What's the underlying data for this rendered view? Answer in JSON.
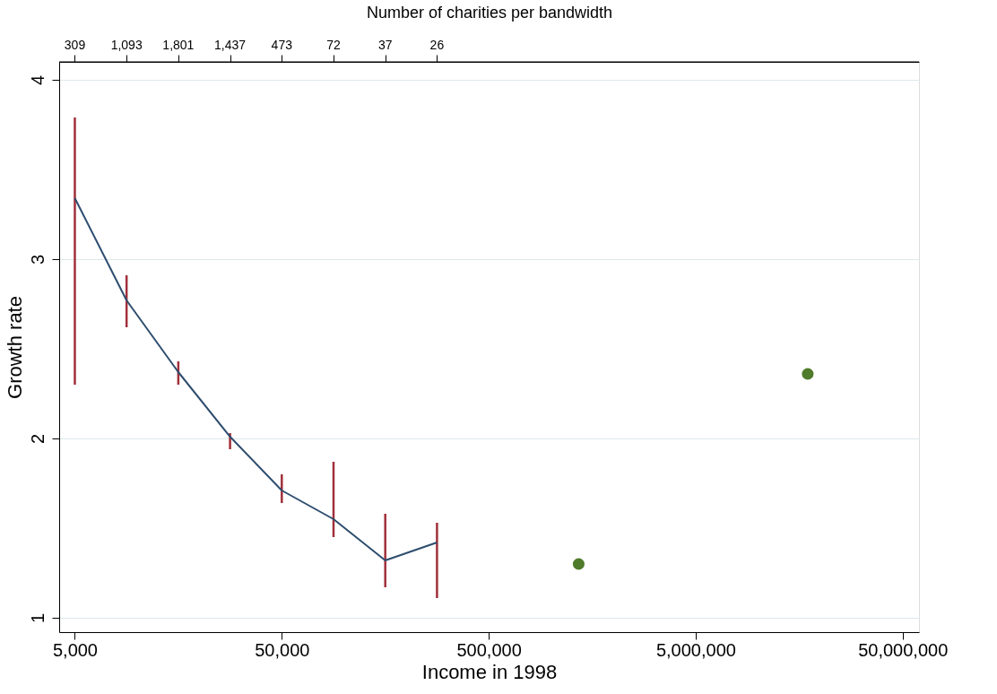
{
  "chart_data": {
    "type": "line",
    "xlabel": "Income in 1998",
    "ylabel": "Growth rate",
    "x2label": "Number of charities per bandwidth",
    "log": "x",
    "grid": "y",
    "xlim": [
      4200,
      60000000
    ],
    "xticks": [
      {
        "value": 5000,
        "label": "5,000"
      },
      {
        "value": 50000,
        "label": "50,000"
      },
      {
        "value": 500000,
        "label": "500,000"
      },
      {
        "value": 5000000,
        "label": "5,000,000"
      },
      {
        "value": 50000000,
        "label": "50,000,000"
      }
    ],
    "annotations": [
      {
        "text": "309",
        "x": 5000
      },
      {
        "text": "1,093",
        "x": 8891
      },
      {
        "text": "1,801",
        "x": 15811
      },
      {
        "text": "1,437",
        "x": 28117
      },
      {
        "text": "473",
        "x": 50000
      },
      {
        "text": "72",
        "x": 88914
      },
      {
        "text": "37",
        "x": 158114
      },
      {
        "text": "26",
        "x": 281170
      }
    ],
    "ylim": [
      0.92,
      4.1
    ],
    "yticks": [
      1,
      2,
      3,
      4
    ],
    "series": [
      {
        "color": "#2e4d6e",
        "marker": "none",
        "line_style": "solid",
        "x": [
          5000,
          8891,
          15811,
          28117,
          50000,
          88914,
          158114,
          281170
        ],
        "values": [
          3.34,
          2.77,
          2.37,
          2.01,
          1.71,
          1.55,
          1.32,
          1.42
        ],
        "errors": [
          [
            2.3,
            3.79
          ],
          [
            2.62,
            2.91
          ],
          [
            2.3,
            2.43
          ],
          [
            1.94,
            2.03
          ],
          [
            1.64,
            1.8
          ],
          [
            1.45,
            1.87
          ],
          [
            1.17,
            1.58
          ],
          [
            1.11,
            1.53
          ]
        ]
      },
      {
        "type": "scatter",
        "color": "#4f7b2a",
        "marker": "circle",
        "x": [
          1360000,
          17400000
        ],
        "values": [
          1.3,
          2.36
        ]
      }
    ]
  }
}
